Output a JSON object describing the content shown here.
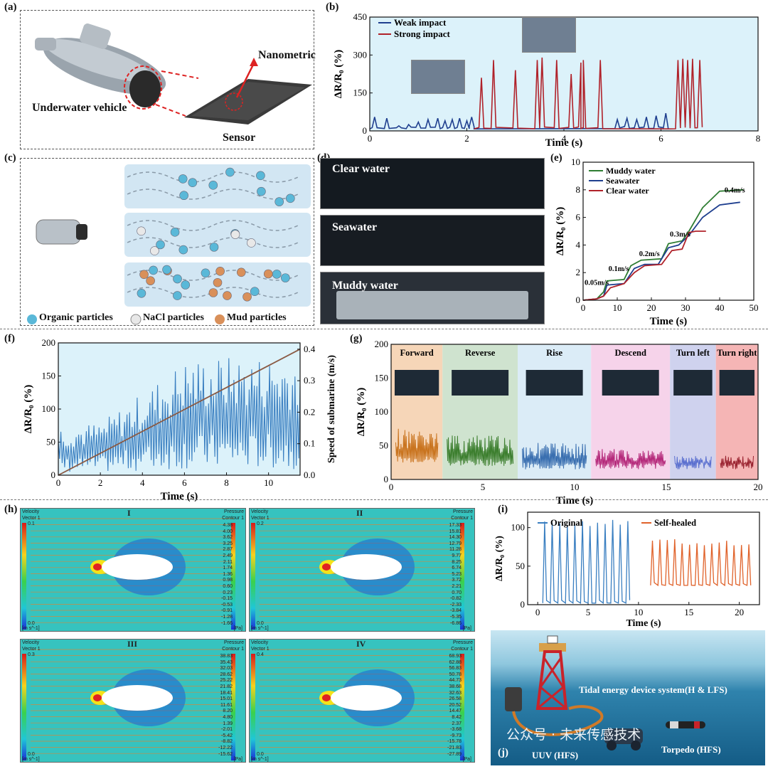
{
  "panels": {
    "a": {
      "label": "(a)",
      "vehicle_label": "Underwater vehicle",
      "sensor_label": "Sensor",
      "nano_label": "Nanometric"
    },
    "b": {
      "label": "(b)",
      "xlabel": "Time (s)",
      "ylabel": "ΔR/R₀ (%)",
      "legend": [
        "Weak impact",
        "Strong impact"
      ]
    },
    "c": {
      "label": "(c)",
      "legend": [
        "Organic particles",
        "NaCl particles",
        "Mud particles"
      ]
    },
    "d": {
      "label": "(d)",
      "captions": [
        "Clear water",
        "Seawater",
        "Muddy water"
      ]
    },
    "e": {
      "label": "(e)",
      "xlabel": "Time (s)",
      "ylabel": "ΔR/R₀ (%)",
      "legend": [
        "Muddy water",
        "Seawater",
        "Clear water"
      ],
      "annotations": [
        "0.05m/s",
        "0.1m/s",
        "0.2m/s",
        "0.3m/s",
        "0.4m/s"
      ]
    },
    "f": {
      "label": "(f)",
      "xlabel": "Time (s)",
      "ylabel": "ΔR/R₀ (%)",
      "ylabel_right": "Speed of submarine (m/s)"
    },
    "g": {
      "label": "(g)",
      "xlabel": "Time (s)",
      "ylabel": "ΔR/R₀ (%)",
      "segments": [
        "Forward",
        "Reverse",
        "Rise",
        "Descend",
        "Turn left",
        "Turn right"
      ]
    },
    "h": {
      "label": "(h)",
      "romans": [
        "I",
        "II",
        "III",
        "IV"
      ],
      "velocity_title": "Velocity Vector 1",
      "pressure_title": "Pressure Contour 1",
      "unit_left": "[m s^-1]",
      "unit_right": "[Pa]",
      "sims": [
        {
          "vmax": "0.1",
          "vmin": "0.0",
          "pressure": [
            "4.38",
            "4.00",
            "3.62",
            "3.25",
            "2.87",
            "2.49",
            "2.11",
            "1.74",
            "1.36",
            "0.98",
            "0.60",
            "0.23",
            "-0.15",
            "-0.53",
            "-0.91",
            "-1.28",
            "-1.66"
          ]
        },
        {
          "vmax": "0.2",
          "vmin": "0.0",
          "pressure": [
            "17.33",
            "15.81",
            "14.30",
            "12.79",
            "11.28",
            "9.77",
            "8.25",
            "6.74",
            "5.23",
            "3.72",
            "2.21",
            "0.70",
            "-0.82",
            "-2.33",
            "-3.84",
            "-5.35",
            "-6.86"
          ]
        },
        {
          "vmax": "0.3",
          "vmin": "0.0",
          "pressure": [
            "38.83",
            "35.43",
            "32.03",
            "28.62",
            "25.22",
            "21.82",
            "18.41",
            "15.01",
            "11.61",
            "8.20",
            "4.80",
            "1.39",
            "-2.01",
            "-5.42",
            "-8.82",
            "-12.22",
            "-15.62"
          ]
        },
        {
          "vmax": "0.4",
          "vmin": "0.0",
          "pressure": [
            "68.93",
            "62.88",
            "56.83",
            "50.78",
            "44.73",
            "38.68",
            "32.63",
            "26.58",
            "20.52",
            "14.47",
            "8.42",
            "2.37",
            "-3.68",
            "-9.73",
            "-15.78",
            "-21.83",
            "-27.89"
          ]
        }
      ]
    },
    "i": {
      "label": "(i)",
      "xlabel": "Time (s)",
      "ylabel": "ΔR/R₀ (%)",
      "legend": [
        "Original",
        "Self-healed"
      ]
    },
    "j": {
      "label": "(j)",
      "system_label": "Tidal energy device system(H & LFS)",
      "uuv_label": "UUV (HFS)",
      "torpedo_label": "Torpedo (HFS)",
      "watermark": "公众号 · 未来传感技术"
    }
  },
  "chart_data": [
    {
      "id": "b",
      "type": "line",
      "xlim": [
        0,
        8
      ],
      "ylim": [
        0,
        450
      ],
      "xticks": [
        0,
        2,
        4,
        6,
        8
      ],
      "yticks": [
        0,
        150,
        300,
        450
      ],
      "series": [
        {
          "name": "Weak impact",
          "color": "#1f3f8f",
          "peaks_x": [
            0.1,
            0.35,
            0.6,
            0.8,
            1.0,
            1.2,
            1.4,
            1.55,
            1.7,
            1.85,
            2.0,
            2.1,
            5.1,
            5.3,
            5.5,
            5.7,
            5.9,
            6.1
          ],
          "peaks_y": [
            55,
            50,
            20,
            25,
            35,
            45,
            50,
            40,
            45,
            50,
            40,
            55,
            45,
            50,
            45,
            55,
            60,
            70
          ]
        },
        {
          "name": "Strong impact",
          "color": "#b0222a",
          "peaks_x": [
            2.3,
            2.55,
            3.0,
            3.45,
            3.55,
            3.85,
            4.15,
            4.35,
            4.4,
            4.75,
            6.35,
            6.45,
            6.55,
            6.65,
            6.8
          ],
          "peaks_y": [
            210,
            280,
            240,
            280,
            290,
            280,
            225,
            270,
            280,
            280,
            280,
            285,
            280,
            285,
            280
          ]
        }
      ]
    },
    {
      "id": "e",
      "type": "line",
      "xlim": [
        0,
        50
      ],
      "ylim": [
        0,
        10
      ],
      "xticks": [
        0,
        10,
        20,
        30,
        40,
        50
      ],
      "yticks": [
        0,
        2,
        4,
        6,
        8,
        10
      ],
      "series": [
        {
          "name": "Muddy water",
          "color": "#2e7d32",
          "x": [
            0,
            4,
            6,
            7,
            12,
            14,
            17,
            23,
            25,
            29,
            31,
            35,
            40,
            47
          ],
          "y": [
            0,
            0.1,
            0.6,
            1.4,
            1.5,
            2.5,
            2.9,
            3.0,
            4.1,
            4.3,
            5.0,
            6.7,
            7.9,
            8.0
          ]
        },
        {
          "name": "Seawater",
          "color": "#1f3f8f",
          "x": [
            0,
            4,
            6,
            7,
            12,
            15,
            18,
            22,
            25,
            28,
            31,
            35,
            40,
            46
          ],
          "y": [
            0,
            0.1,
            0.3,
            1.1,
            1.2,
            2.3,
            2.6,
            2.6,
            3.8,
            4.0,
            4.7,
            6.0,
            6.9,
            7.1
          ]
        },
        {
          "name": "Clear water",
          "color": "#b0222a",
          "x": [
            0,
            4,
            6,
            8,
            12,
            15,
            18,
            23,
            26,
            29,
            31,
            33,
            36
          ],
          "y": [
            0,
            0.1,
            0.3,
            0.9,
            1.2,
            2.0,
            2.5,
            2.6,
            3.6,
            3.7,
            4.9,
            5.0,
            5.0
          ]
        }
      ]
    },
    {
      "id": "f",
      "type": "line",
      "xlim": [
        0,
        11.5
      ],
      "ylim": [
        0,
        200
      ],
      "ylim_right": [
        0,
        0.42
      ],
      "xticks": [
        0,
        2,
        4,
        6,
        8,
        10
      ],
      "yticks": [
        0,
        50,
        100,
        150,
        200
      ],
      "yticks_right": [
        0.0,
        0.1,
        0.2,
        0.3,
        0.4
      ],
      "series": [
        {
          "name": "",
          "color": "#3a7fc1",
          "axis": "left",
          "envelope_x": [
            0,
            2,
            4,
            6,
            8,
            10,
            11.5
          ],
          "envelope_max": [
            75,
            80,
            125,
            175,
            180,
            180,
            180
          ]
        },
        {
          "name": "",
          "color": "#8a5a44",
          "axis": "right",
          "x": [
            0,
            11.5
          ],
          "y": [
            0,
            0.4
          ]
        }
      ]
    },
    {
      "id": "g",
      "type": "line",
      "xlim": [
        0,
        20
      ],
      "ylim": [
        0,
        200
      ],
      "xticks": [
        0,
        5,
        10,
        15,
        20
      ],
      "yticks": [
        0,
        50,
        100,
        150,
        200
      ],
      "segments": [
        {
          "name": "Forward",
          "x0": 0,
          "x1": 2.8,
          "bg": "#f6d6b8",
          "color": "#c9741f",
          "amp": [
            25,
            75
          ]
        },
        {
          "name": "Reverse",
          "x0": 2.8,
          "x1": 6.9,
          "bg": "#cfe3cf",
          "color": "#3d7f2f",
          "amp": [
            20,
            65
          ]
        },
        {
          "name": "Rise",
          "x0": 6.9,
          "x1": 10.9,
          "bg": "#dbecf7",
          "color": "#3a6fb0",
          "amp": [
            15,
            55
          ]
        },
        {
          "name": "Descend",
          "x0": 10.9,
          "x1": 15.2,
          "bg": "#f6d3ea",
          "color": "#b52a7b",
          "amp": [
            15,
            45
          ]
        },
        {
          "name": "Turn left",
          "x0": 15.2,
          "x1": 17.7,
          "bg": "#cfd2ee",
          "color": "#5a6fcf",
          "amp": [
            15,
            35
          ]
        },
        {
          "name": "Turn right",
          "x0": 17.7,
          "x1": 20,
          "bg": "#f5b5b5",
          "color": "#9a2330",
          "amp": [
            15,
            35
          ]
        }
      ]
    },
    {
      "id": "i",
      "type": "line",
      "xlim": [
        -1,
        22
      ],
      "ylim": [
        0,
        120
      ],
      "xticks": [
        0,
        5,
        10,
        15,
        20
      ],
      "yticks": [
        0,
        50,
        100
      ],
      "series": [
        {
          "name": "Original",
          "color": "#3a7fc1",
          "x_start": 0.5,
          "x_end": 9.5,
          "peak": 110,
          "base": 2,
          "count": 12
        },
        {
          "name": "Self-healed",
          "color": "#e0622a",
          "x_start": 11.2,
          "x_end": 21.5,
          "peak": 85,
          "base": 25,
          "count": 14
        }
      ]
    }
  ]
}
